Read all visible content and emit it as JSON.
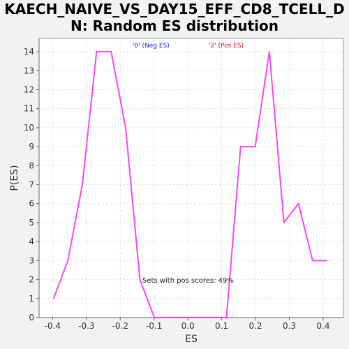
{
  "chart_data": {
    "type": "line",
    "title_line1": "KAECH_NAIVE_VS_DAY15_EFF_CD8_TCELL_D",
    "title_line2": "N: Random ES distribution",
    "xlabel": "ES",
    "ylabel": "P(ES)",
    "xlim": [
      -0.44,
      0.46
    ],
    "ylim": [
      0,
      14.7
    ],
    "x_ticks": [
      "-0.4",
      "-0.3",
      "-0.2",
      "-0.1",
      "0.0",
      "0.1",
      "0.2",
      "0.3",
      "0.4"
    ],
    "x_tick_values": [
      -0.4,
      -0.3,
      -0.2,
      -0.1,
      0.0,
      0.1,
      0.2,
      0.3,
      0.4
    ],
    "y_ticks": [
      "0",
      "1",
      "2",
      "3",
      "4",
      "5",
      "6",
      "7",
      "8",
      "9",
      "10",
      "11",
      "12",
      "13",
      "14"
    ],
    "y_tick_values": [
      0,
      1,
      2,
      3,
      4,
      5,
      6,
      7,
      8,
      9,
      10,
      11,
      12,
      13,
      14
    ],
    "grid": true,
    "line_color": "#ff44ff",
    "series": [
      {
        "x": [
          -0.397,
          -0.355,
          -0.312,
          -0.27,
          -0.227,
          -0.184,
          -0.142,
          -0.099,
          -0.057,
          -0.014,
          0.028,
          0.071,
          0.114,
          0.156,
          0.199,
          0.241,
          0.284,
          0.327,
          0.369,
          0.412
        ],
        "y": [
          1,
          3,
          7,
          14,
          14,
          10,
          2,
          0,
          0,
          0,
          0,
          0,
          0,
          9,
          9,
          14,
          5,
          6,
          3,
          3
        ]
      }
    ],
    "legend": [
      {
        "label": "'0' (Neg ES)",
        "color": "#2222cc"
      },
      {
        "label": "'2' (Pos ES)",
        "color": "#dd1111"
      }
    ],
    "annotation": "Sets with pos scores: 49%"
  }
}
